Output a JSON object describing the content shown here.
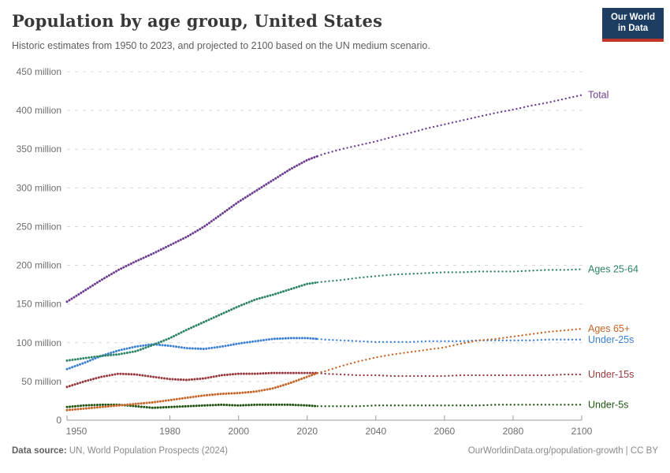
{
  "header": {
    "title": "Population by age group, United States",
    "subtitle": "Historic estimates from 1950 to 2023, and projected to 2100 based on the UN medium scenario.",
    "logo": {
      "line1": "Our World",
      "line2": "in Data",
      "bg_color": "#1d3d63",
      "accent_color": "#c0362c"
    }
  },
  "chart_data": {
    "type": "line",
    "title": "Population by age group, United States",
    "unit": "million",
    "ylim": [
      0,
      450
    ],
    "ytick_step": 50,
    "grid": "horizontal-dashed",
    "legend_position": "right-end-labels",
    "projection_start_year": 2023,
    "xticks": [
      1950,
      1980,
      2000,
      2020,
      2040,
      2060,
      2080,
      2100
    ],
    "x": [
      1950,
      1955,
      1960,
      1965,
      1970,
      1975,
      1980,
      1985,
      1990,
      1995,
      2000,
      2005,
      2010,
      2015,
      2020,
      2023,
      2025,
      2030,
      2035,
      2040,
      2045,
      2050,
      2055,
      2060,
      2065,
      2070,
      2075,
      2080,
      2085,
      2090,
      2095,
      2100
    ],
    "series": [
      {
        "name": "Total",
        "color": "#6d3e91",
        "values": [
          153,
          167,
          181,
          194,
          205,
          215,
          226,
          237,
          250,
          266,
          282,
          296,
          310,
          324,
          336,
          341,
          344,
          350,
          355,
          360,
          366,
          371,
          377,
          382,
          387,
          392,
          397,
          401,
          406,
          410,
          415,
          420
        ]
      },
      {
        "name": "Ages 25-64",
        "color": "#2c8465",
        "values": [
          77,
          80,
          83,
          85,
          89,
          97,
          106,
          117,
          127,
          137,
          147,
          156,
          162,
          169,
          176,
          178,
          179,
          181,
          184,
          186,
          188,
          189,
          190,
          191,
          191,
          192,
          192,
          192,
          193,
          194,
          194,
          195
        ]
      },
      {
        "name": "Ages 65+",
        "color": "#c66527",
        "values": [
          13,
          15,
          17,
          19,
          21,
          23,
          26,
          29,
          32,
          34,
          35,
          37,
          41,
          48,
          56,
          61,
          63,
          70,
          76,
          81,
          85,
          88,
          91,
          94,
          99,
          103,
          105,
          108,
          111,
          114,
          116,
          118
        ]
      },
      {
        "name": "Under-25s",
        "color": "#3b7fd4",
        "values": [
          66,
          74,
          83,
          90,
          95,
          98,
          96,
          93,
          92,
          95,
          99,
          102,
          105,
          106,
          106,
          105,
          104,
          103,
          102,
          101,
          101,
          101,
          102,
          102,
          102,
          103,
          103,
          103,
          103,
          104,
          104,
          104
        ]
      },
      {
        "name": "Under-15s",
        "color": "#98393f",
        "values": [
          43,
          50,
          56,
          60,
          59,
          56,
          53,
          52,
          54,
          58,
          60,
          60,
          61,
          61,
          61,
          61,
          60,
          59,
          58,
          58,
          57,
          57,
          57,
          57,
          58,
          58,
          58,
          58,
          58,
          58,
          59,
          59
        ]
      },
      {
        "name": "Under-5s",
        "color": "#1f5410",
        "values": [
          17,
          19,
          20,
          20,
          18,
          16,
          17,
          18,
          19,
          20,
          19,
          20,
          20,
          20,
          19,
          18,
          18,
          18,
          18,
          19,
          19,
          19,
          19,
          19,
          19,
          19,
          20,
          20,
          20,
          20,
          20,
          20
        ]
      }
    ]
  },
  "footer": {
    "source_label": "Data source:",
    "source_text": " UN, World Population Prospects (2024)",
    "credit": "OurWorldinData.org/population-growth | CC BY"
  }
}
